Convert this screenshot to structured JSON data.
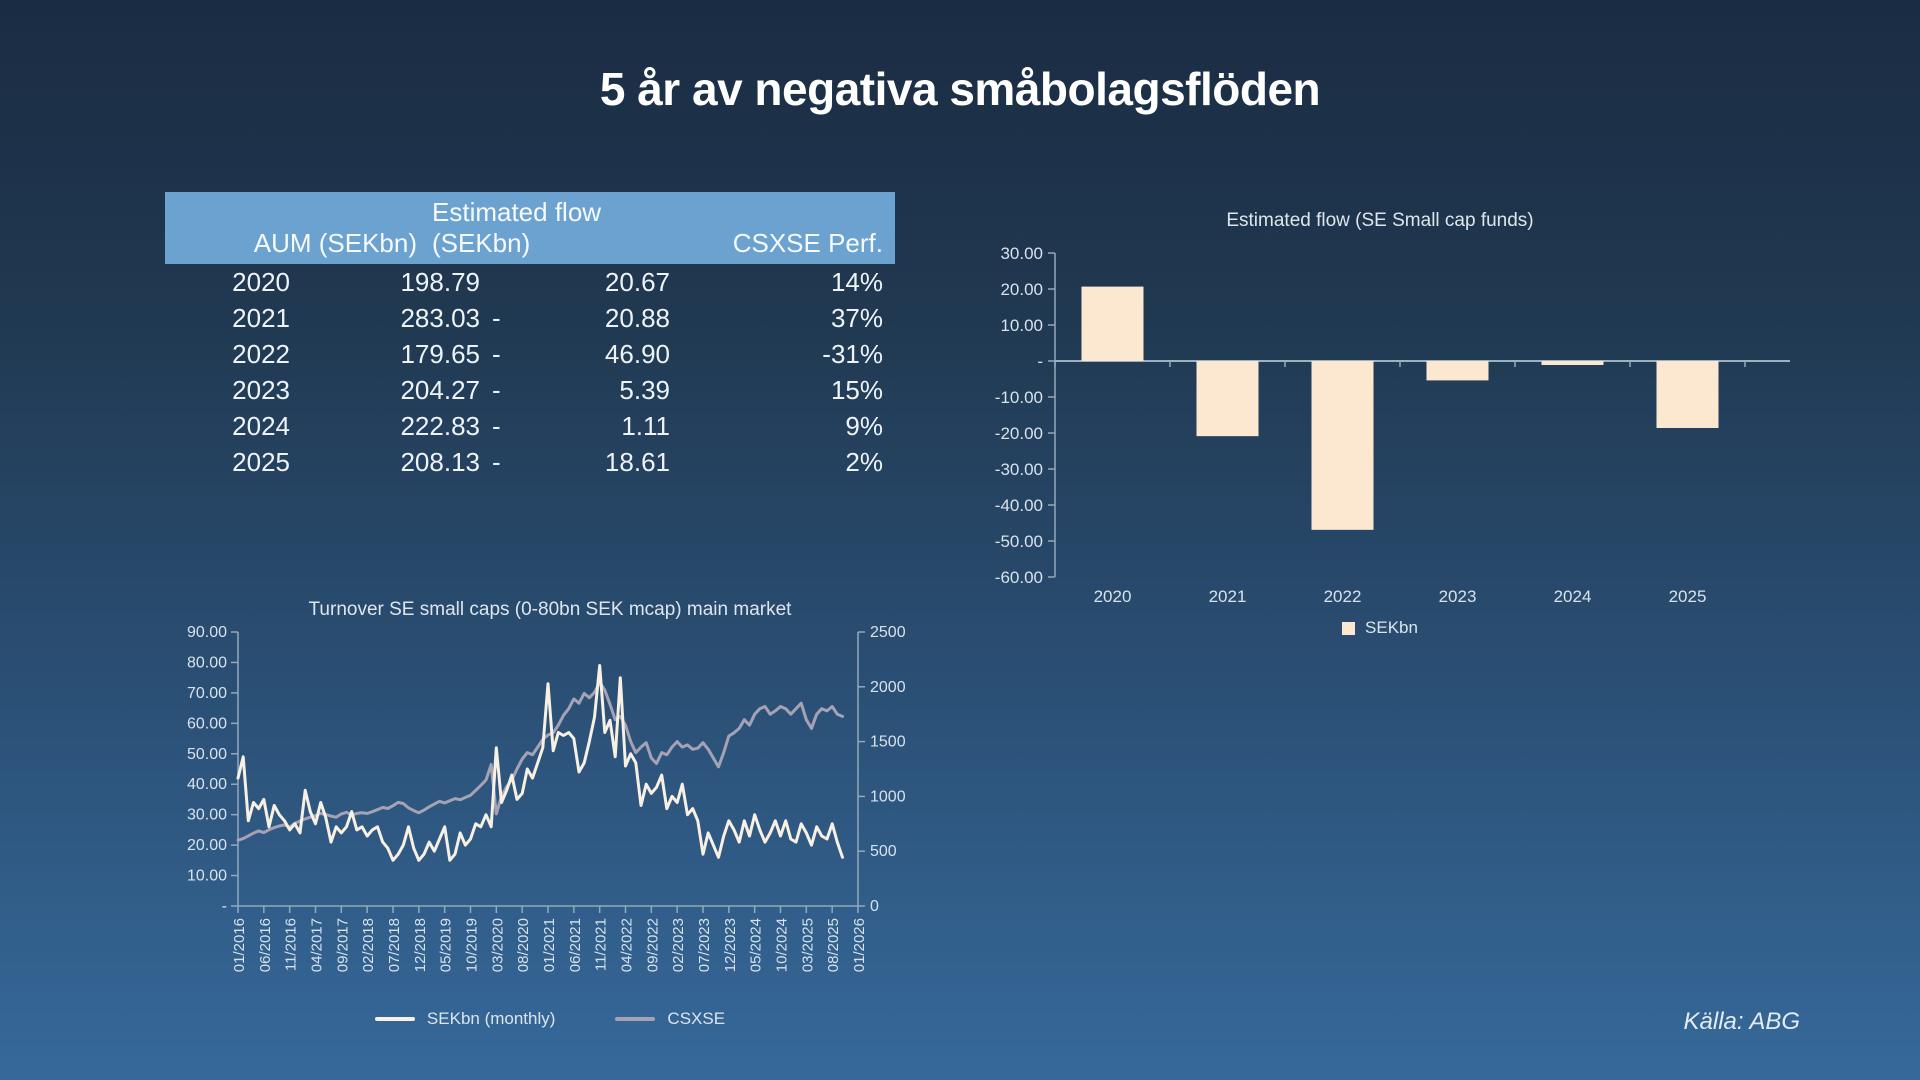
{
  "slide": {
    "title": "5 år av negativa småbolagsflöden",
    "source": "Källa: ABG"
  },
  "table": {
    "headers": {
      "year": "",
      "aum": "AUM (SEKbn)",
      "flow_line1": "Estimated flow",
      "flow_line2": "(SEKbn)",
      "perf": "CSXSE Perf."
    },
    "rows": [
      {
        "year": "2020",
        "aum": "198.79",
        "flow_sign": "",
        "flow": "20.67",
        "perf": "14%"
      },
      {
        "year": "2021",
        "aum": "283.03",
        "flow_sign": "-",
        "flow": "20.88",
        "perf": "37%"
      },
      {
        "year": "2022",
        "aum": "179.65",
        "flow_sign": "-",
        "flow": "46.90",
        "perf": "-31%"
      },
      {
        "year": "2023",
        "aum": "204.27",
        "flow_sign": "-",
        "flow": "5.39",
        "perf": "15%"
      },
      {
        "year": "2024",
        "aum": "222.83",
        "flow_sign": "-",
        "flow": "1.11",
        "perf": "9%"
      },
      {
        "year": "2025",
        "aum": "208.13",
        "flow_sign": "-",
        "flow": "18.61",
        "perf": "2%"
      }
    ]
  },
  "chart_data": [
    {
      "type": "bar",
      "title": "Estimated flow (SE Small cap funds)",
      "categories": [
        "2020",
        "2021",
        "2022",
        "2023",
        "2024",
        "2025"
      ],
      "values": [
        20.67,
        -20.88,
        -46.9,
        -5.39,
        -1.11,
        -18.61
      ],
      "ylim": [
        -60,
        30
      ],
      "ytick_labels": [
        "30.00",
        "20.00",
        "10.00",
        "-",
        "-10.00",
        "-20.00",
        "-30.00",
        "-40.00",
        "-50.00",
        "-60.00"
      ],
      "legend": [
        "SEKbn"
      ],
      "legend_position": "bottom",
      "grid": false,
      "bar_color": "#fce8d1"
    },
    {
      "type": "line",
      "title": "Turnover SE small caps (0-80bn SEK mcap) main market",
      "x_start": "01/2016",
      "x_tick_interval_months": 5,
      "x_total_slots": 121,
      "x_tick_labels": [
        "01/2016",
        "06/2016",
        "11/2016",
        "04/2017",
        "09/2017",
        "02/2018",
        "07/2018",
        "12/2018",
        "05/2019",
        "10/2019",
        "03/2020",
        "08/2020",
        "01/2021",
        "06/2021",
        "11/2021",
        "04/2022",
        "09/2022",
        "02/2023",
        "07/2023",
        "12/2023",
        "05/2024",
        "10/2024",
        "03/2025",
        "08/2025",
        "01/2026"
      ],
      "left_axis": {
        "lim": [
          0,
          90
        ],
        "tick_labels": [
          "90.00",
          "80.00",
          "70.00",
          "60.00",
          "50.00",
          "40.00",
          "30.00",
          "20.00",
          "10.00",
          "-"
        ]
      },
      "right_axis": {
        "lim": [
          0,
          2500
        ],
        "tick_labels": [
          "2500",
          "2000",
          "1500",
          "1000",
          "500",
          "0"
        ]
      },
      "legend_position": "bottom",
      "grid": false,
      "series": [
        {
          "name": "SEKbn (monthly)",
          "axis": "left",
          "color": "#f8f0e2",
          "values": [
            42,
            49,
            28,
            34,
            32,
            35,
            26,
            33,
            30,
            28,
            25,
            27,
            24,
            38,
            31,
            27,
            34,
            29,
            21,
            26,
            24,
            26,
            31,
            25,
            26,
            23,
            25,
            26,
            21,
            19,
            15,
            17,
            20,
            26,
            19,
            15,
            17,
            21,
            18,
            22,
            26,
            15,
            17,
            24,
            20,
            22,
            27,
            26,
            30,
            26,
            52,
            34,
            38,
            43,
            35,
            37,
            45,
            42,
            47,
            52,
            73,
            51,
            57,
            56,
            57,
            55,
            44,
            47,
            54,
            62,
            79,
            57,
            61,
            49,
            75,
            46,
            50,
            47,
            33,
            40,
            37,
            39,
            43,
            32,
            36,
            34,
            40,
            30,
            32,
            28,
            17,
            24,
            20,
            16,
            23,
            28,
            25,
            21,
            28,
            23,
            30,
            25,
            21,
            24,
            28,
            23,
            28,
            22,
            21,
            27,
            24,
            20,
            26,
            23,
            22,
            27,
            21,
            16
          ]
        },
        {
          "name": "CSXSE",
          "axis": "right",
          "color": "#a6a2b6",
          "values": [
            600,
            615,
            640,
            665,
            685,
            670,
            695,
            715,
            730,
            740,
            720,
            755,
            775,
            795,
            810,
            825,
            845,
            835,
            820,
            810,
            840,
            855,
            830,
            845,
            850,
            845,
            860,
            880,
            900,
            890,
            915,
            945,
            935,
            895,
            870,
            850,
            875,
            905,
            930,
            955,
            940,
            960,
            980,
            970,
            990,
            1010,
            1055,
            1100,
            1150,
            1290,
            840,
            1000,
            1090,
            1150,
            1250,
            1340,
            1400,
            1380,
            1450,
            1520,
            1560,
            1580,
            1650,
            1740,
            1800,
            1890,
            1850,
            1940,
            1900,
            1950,
            2040,
            1970,
            1840,
            1700,
            1730,
            1650,
            1500,
            1400,
            1450,
            1490,
            1350,
            1300,
            1400,
            1380,
            1450,
            1500,
            1450,
            1470,
            1430,
            1440,
            1490,
            1430,
            1350,
            1270,
            1400,
            1550,
            1580,
            1620,
            1700,
            1650,
            1750,
            1800,
            1820,
            1750,
            1780,
            1820,
            1800,
            1750,
            1800,
            1850,
            1700,
            1620,
            1750,
            1800,
            1780,
            1820,
            1750,
            1730
          ]
        }
      ]
    }
  ]
}
